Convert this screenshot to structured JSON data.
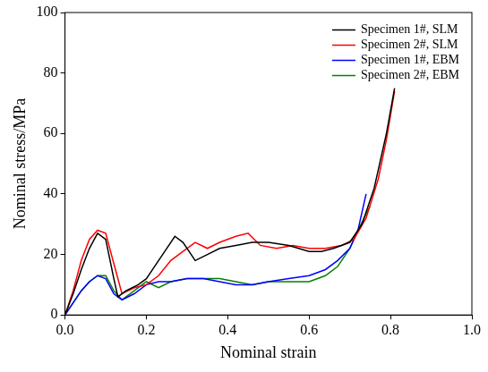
{
  "chart_data": {
    "type": "line",
    "x_label": "Nominal strain",
    "y_label": "Nominal stress/MPa",
    "xlim": [
      0,
      1
    ],
    "xticks": [
      {
        "value": 0,
        "label": "0.0"
      },
      {
        "value": 0.2,
        "label": "0.2"
      },
      {
        "value": 0.4,
        "label": "0.4"
      },
      {
        "value": 0.6,
        "label": "0.6"
      },
      {
        "value": 0.8,
        "label": "0.8"
      },
      {
        "value": 1,
        "label": "1.0"
      }
    ],
    "ylim": [
      0,
      100
    ],
    "yticks": [
      0,
      20,
      40,
      60,
      80,
      100
    ],
    "grid": false,
    "legend": "upper right",
    "series": [
      {
        "name": "Specimen 1#, SLM",
        "color": "#000000",
        "x": [
          0,
          0.02,
          0.04,
          0.06,
          0.08,
          0.1,
          0.12,
          0.13,
          0.15,
          0.18,
          0.2,
          0.22,
          0.25,
          0.27,
          0.29,
          0.32,
          0.35,
          0.38,
          0.42,
          0.46,
          0.5,
          0.55,
          0.6,
          0.63,
          0.66,
          0.7,
          0.73,
          0.76,
          0.79,
          0.81
        ],
        "values": [
          0,
          7,
          15,
          22,
          27,
          25,
          12,
          6,
          8,
          10,
          12,
          16,
          22,
          26,
          24,
          18,
          20,
          22,
          23,
          24,
          24,
          23,
          21,
          21,
          22,
          24,
          30,
          42,
          60,
          75
        ]
      },
      {
        "name": "Specimen 2#, SLM",
        "color": "#ff0000",
        "x": [
          0,
          0.02,
          0.04,
          0.06,
          0.08,
          0.1,
          0.12,
          0.14,
          0.17,
          0.2,
          0.23,
          0.26,
          0.29,
          0.32,
          0.35,
          0.38,
          0.42,
          0.45,
          0.48,
          0.52,
          0.56,
          0.6,
          0.64,
          0.68,
          0.71,
          0.74,
          0.77,
          0.79,
          0.81
        ],
        "values": [
          0,
          8,
          18,
          25,
          28,
          27,
          17,
          7,
          9,
          10,
          13,
          18,
          21,
          24,
          22,
          24,
          26,
          27,
          23,
          22,
          23,
          22,
          22,
          23,
          25,
          32,
          45,
          58,
          74
        ]
      },
      {
        "name": "Specimen 1#, EBM",
        "color": "#0000ff",
        "x": [
          0,
          0.02,
          0.04,
          0.06,
          0.08,
          0.1,
          0.12,
          0.14,
          0.17,
          0.2,
          0.23,
          0.26,
          0.3,
          0.34,
          0.38,
          0.42,
          0.46,
          0.5,
          0.55,
          0.6,
          0.64,
          0.67,
          0.7,
          0.72,
          0.74
        ],
        "values": [
          0,
          4,
          8,
          11,
          13,
          12,
          7,
          5,
          7,
          10,
          11,
          11,
          12,
          12,
          11,
          10,
          10,
          11,
          12,
          13,
          15,
          18,
          22,
          28,
          40
        ]
      },
      {
        "name": "Specimen 2#, EBM",
        "color": "#008000",
        "x": [
          0,
          0.02,
          0.04,
          0.06,
          0.08,
          0.1,
          0.12,
          0.14,
          0.17,
          0.2,
          0.23,
          0.26,
          0.3,
          0.34,
          0.38,
          0.42,
          0.46,
          0.5,
          0.55,
          0.6,
          0.64,
          0.67,
          0.7,
          0.72,
          0.75
        ],
        "values": [
          0,
          4,
          8,
          11,
          13,
          13,
          8,
          5,
          8,
          11,
          9,
          11,
          12,
          12,
          12,
          11,
          10,
          11,
          11,
          11,
          13,
          16,
          22,
          28,
          36
        ]
      }
    ]
  }
}
